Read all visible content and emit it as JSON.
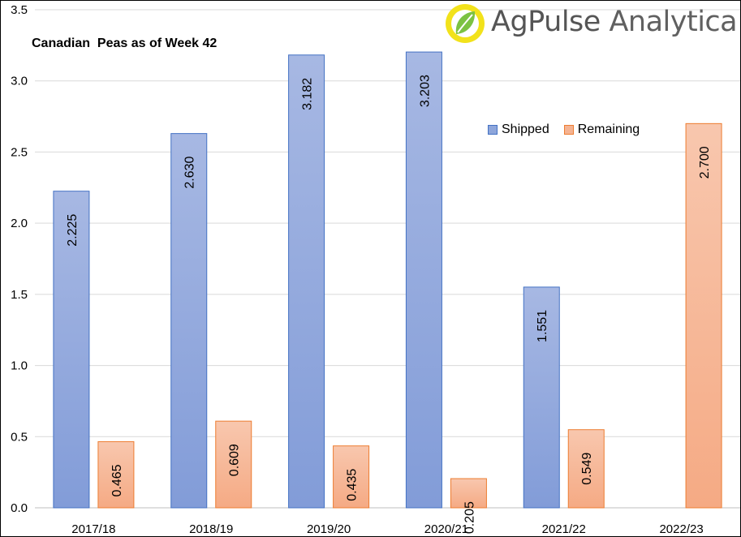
{
  "chart_data": {
    "type": "bar",
    "title": "Canadian  Peas as of Week 42",
    "categories": [
      "2017/18",
      "2018/19",
      "2019/20",
      "2020/21",
      "2021/22",
      "2022/23"
    ],
    "series": [
      {
        "name": "Shipped",
        "values": [
          2.225,
          2.63,
          3.182,
          3.203,
          1.551,
          null
        ],
        "labels": [
          "2.225",
          "2.630",
          "3.182",
          "3.203",
          "1.551",
          ""
        ],
        "color": "#8EA6DB"
      },
      {
        "name": "Remaining",
        "values": [
          0.465,
          0.609,
          0.435,
          0.205,
          0.549,
          2.7
        ],
        "labels": [
          "0.465",
          "0.609",
          "0.435",
          "0.205",
          "0.549",
          "2.700"
        ],
        "color": "#F5B392"
      }
    ],
    "ylim": [
      0,
      3.5
    ],
    "yticks": [
      "0.0",
      "0.5",
      "1.0",
      "1.5",
      "2.0",
      "2.5",
      "3.0",
      "3.5"
    ],
    "grid": true,
    "legend_position": "top-right",
    "xlabel": "",
    "ylabel": ""
  },
  "logo": {
    "text_bold": "AgPulse",
    "text_light": "Analytica"
  },
  "colors": {
    "shipped_top": "#A7B8E3",
    "shipped_bottom": "#829CD8",
    "shipped_border": "#4472C4",
    "remaining_top": "#F8C7AE",
    "remaining_bottom": "#F5AA84",
    "remaining_border": "#ED7D31",
    "grid": "#D9D9D9",
    "logo_leaf": "#7CC242",
    "logo_ring": "#F2E21B"
  }
}
